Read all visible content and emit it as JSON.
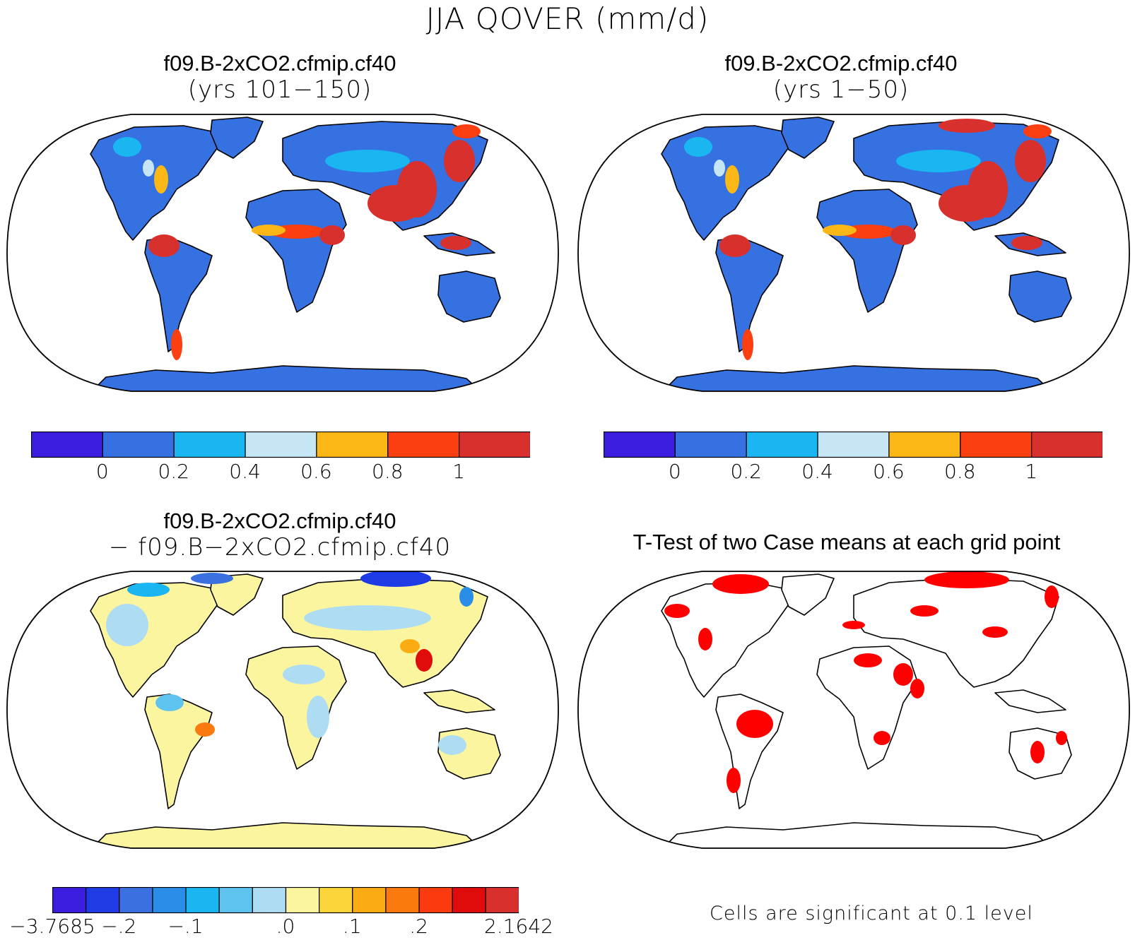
{
  "title": "JJA QOVER (mm/d)",
  "panels": {
    "top_left": {
      "title_line1": "f09.B-2xCO2.cfmip.cf40",
      "title_line2": "(yrs 101−150)"
    },
    "top_right": {
      "title_line1": "f09.B-2xCO2.cfmip.cf40",
      "title_line2": "(yrs 1−50)"
    },
    "bottom_left": {
      "title_line1": "f09.B-2xCO2.cfmip.cf40",
      "title_line2": "− f09.B−2xCO2.cfmip.cf40"
    },
    "bottom_right": {
      "title_line1": "T-Test of two Case means at each grid point",
      "note": "Cells are significant at 0.1 level"
    }
  },
  "colorbar_abs": {
    "colors": [
      "#3b1de0",
      "#3571e0",
      "#19b6f2",
      "#c6e5f5",
      "#fbb716",
      "#fb3f10",
      "#d8302c"
    ],
    "labels": [
      "0",
      "0.2",
      "0.4",
      "0.6",
      "0.8",
      "1"
    ]
  },
  "colorbar_diff": {
    "colors": [
      "#3b1de0",
      "#1f3be6",
      "#3a70e0",
      "#2a8ee8",
      "#19b6f2",
      "#5fc3ef",
      "#aedcf3",
      "#fbf5a0",
      "#fbd53a",
      "#fbac12",
      "#fb7a10",
      "#fb3a10",
      "#e00c0c",
      "#d8302c"
    ],
    "labels": [
      "−3.7685",
      "−.2",
      "−.1",
      ".0",
      ".1",
      ".2",
      "2.1642"
    ]
  },
  "significance_color": "#ff0000"
}
